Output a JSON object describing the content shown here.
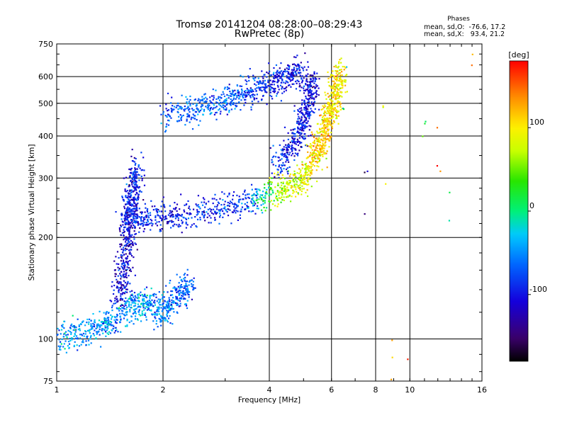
{
  "chart_data": {
    "type": "scatter",
    "title": "Tromsø 20141204 08:28:00–08:29:43",
    "subtitle": "RwPretec (8p)",
    "xlabel": "Frequency [MHz]",
    "ylabel": "Stationary phase Virtual Height [km]",
    "x_scale": "log",
    "y_scale": "log",
    "xlim": [
      1,
      16
    ],
    "ylim": [
      75,
      750
    ],
    "x_ticks": [
      1,
      2,
      4,
      6,
      8,
      10,
      16
    ],
    "y_ticks": [
      75,
      100,
      200,
      300,
      400,
      500,
      600,
      750
    ],
    "x_gridlines": [
      2,
      4,
      6,
      8,
      10
    ],
    "y_gridlines": [
      100,
      200,
      300,
      400,
      500,
      600
    ],
    "phases_header": "Phases",
    "phase_stats": {
      "O": "mean, sd,O:  -76.6, 17.2",
      "X": "mean, sd,X:   93.4, 21.2"
    },
    "colorbar": {
      "label": "[deg]",
      "range": [
        -180,
        180
      ],
      "ticks": [
        -100,
        0,
        100
      ]
    },
    "series": [
      {
        "trace": "low_blob",
        "x": [
          1.0,
          1.2,
          1.4,
          1.6,
          1.8,
          2.0,
          2.2,
          2.4
        ],
        "y": [
          100,
          105,
          110,
          125,
          128,
          120,
          135,
          145
        ],
        "phase_deg": [
          -40,
          -50,
          -60,
          -40,
          -45,
          -60,
          -70,
          -65
        ]
      },
      {
        "trace": "column",
        "x": [
          1.5,
          1.55,
          1.6,
          1.6,
          1.65,
          1.7
        ],
        "y": [
          130,
          160,
          200,
          240,
          280,
          330
        ],
        "phase_deg": [
          -100,
          -110,
          -110,
          -100,
          -95,
          -90
        ]
      },
      {
        "trace": "spread_floor",
        "x": [
          1.55,
          1.8,
          2.2,
          2.8,
          3.5,
          4.2,
          4.8,
          5.2
        ],
        "y": [
          230,
          228,
          232,
          242,
          255,
          272,
          292,
          310
        ],
        "phase_deg": [
          -90,
          -95,
          -95,
          -90,
          -80,
          70,
          80,
          90
        ]
      },
      {
        "trace": "o_cusp",
        "x": [
          4.2,
          4.7,
          5.0,
          5.2,
          5.3
        ],
        "y": [
          330,
          380,
          440,
          520,
          600
        ],
        "phase_deg": [
          -90,
          -100,
          -100,
          -100,
          -110
        ]
      },
      {
        "trace": "x_trace",
        "x": [
          5.3,
          5.5,
          5.8,
          6.0,
          6.2,
          6.3
        ],
        "y": [
          330,
          370,
          420,
          480,
          550,
          620
        ],
        "phase_deg": [
          100,
          110,
          110,
          105,
          100,
          100
        ]
      },
      {
        "trace": "upper_band",
        "x": [
          2.0,
          2.5,
          3.0,
          3.5,
          4.0,
          4.5,
          5.0
        ],
        "y": [
          460,
          480,
          510,
          540,
          570,
          605,
          630
        ],
        "phase_deg": [
          -80,
          -60,
          -70,
          -80,
          -90,
          -100,
          -100
        ]
      },
      {
        "trace": "scattered",
        "x": [
          6.5,
          7.5,
          8.5,
          9.0,
          10.0,
          11.0,
          12.0,
          13.0,
          15.0
        ],
        "y": [
          600,
          310,
          380,
          88,
          90,
          350,
          350,
          240,
          620
        ],
        "phase_deg": [
          10,
          -120,
          110,
          110,
          140,
          20,
          160,
          40,
          130
        ]
      }
    ]
  }
}
